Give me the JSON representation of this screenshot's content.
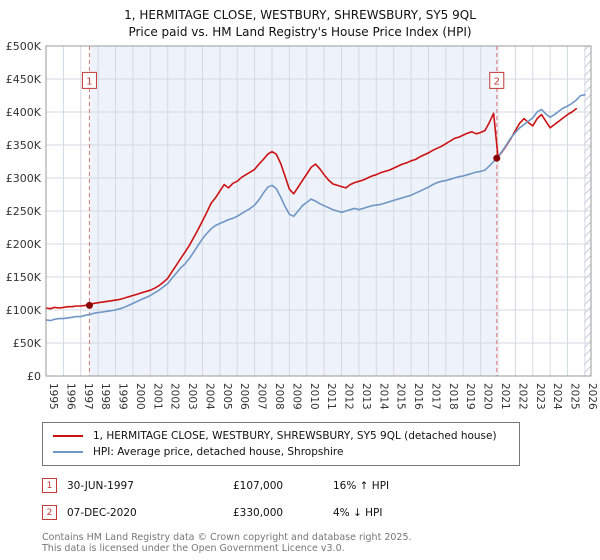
{
  "title": "1, HERMITAGE CLOSE, WESTBURY, SHREWSBURY, SY5 9QL",
  "subtitle": "Price paid vs. HM Land Registry's House Price Index (HPI)",
  "chart_data": {
    "type": "line",
    "title": "1, HERMITAGE CLOSE, WESTBURY, SHREWSBURY, SY5 9QL — Price paid vs. HPI",
    "unit": "GBP thousands",
    "ylim": [
      0,
      500
    ],
    "xlim": [
      1995,
      2026.35
    ],
    "grid": true,
    "shade_color": "#eef3fb",
    "shaded_region": [
      1997.5,
      2020.93
    ],
    "hatch_region": [
      2025.95,
      2026.35
    ],
    "y_ticks": [
      {
        "v": 0,
        "label": "£0"
      },
      {
        "v": 50,
        "label": "£50K"
      },
      {
        "v": 100,
        "label": "£100K"
      },
      {
        "v": 150,
        "label": "£150K"
      },
      {
        "v": 200,
        "label": "£200K"
      },
      {
        "v": 250,
        "label": "£250K"
      },
      {
        "v": 300,
        "label": "£300K"
      },
      {
        "v": 350,
        "label": "£350K"
      },
      {
        "v": 400,
        "label": "£400K"
      },
      {
        "v": 450,
        "label": "£450K"
      },
      {
        "v": 500,
        "label": "£500K"
      }
    ],
    "x_ticks": [
      1995,
      1996,
      1997,
      1998,
      1999,
      2000,
      2001,
      2002,
      2003,
      2004,
      2005,
      2006,
      2007,
      2008,
      2009,
      2010,
      2011,
      2012,
      2013,
      2014,
      2015,
      2016,
      2017,
      2018,
      2019,
      2020,
      2021,
      2022,
      2023,
      2024,
      2025,
      2026
    ],
    "series": [
      {
        "name": "1, HERMITAGE CLOSE, WESTBURY, SHREWSBURY, SY5 9QL (detached house)",
        "color": "#cc1111",
        "start": 1995,
        "step": 0.25,
        "values": [
          103,
          102,
          104,
          103,
          104,
          105,
          105,
          106,
          106,
          107,
          108,
          110,
          111,
          112,
          113,
          114,
          115,
          116,
          118,
          120,
          122,
          124,
          126,
          128,
          130,
          133,
          137,
          142,
          148,
          158,
          168,
          178,
          188,
          198,
          210,
          222,
          235,
          248,
          262,
          270,
          280,
          290,
          285,
          292,
          295,
          301,
          305,
          309,
          313,
          321,
          328,
          336,
          340,
          336,
          322,
          303,
          283,
          276,
          286,
          296,
          306,
          316,
          321,
          314,
          305,
          297,
          291,
          289,
          287,
          285,
          290,
          293,
          295,
          297,
          300,
          303,
          305,
          308,
          310,
          312,
          315,
          318,
          321,
          323,
          326,
          328,
          332,
          335,
          338,
          342,
          345,
          348,
          352,
          356,
          360,
          362,
          365,
          368,
          370,
          367,
          369,
          372,
          384,
          398,
          332,
          340,
          350,
          360,
          372,
          383,
          390,
          384,
          379,
          390,
          396,
          386,
          376,
          381,
          386,
          391,
          396,
          400,
          405
        ]
      },
      {
        "name": "HPI: Average price, detached house, Shropshire",
        "color": "#6f96c4",
        "start": 1995,
        "step": 0.25,
        "values": [
          85,
          84,
          86,
          87,
          87,
          88,
          89,
          90,
          90,
          92,
          93,
          95,
          96,
          97,
          98,
          99,
          100,
          102,
          104,
          107,
          110,
          113,
          116,
          119,
          122,
          126,
          130,
          135,
          140,
          148,
          156,
          164,
          170,
          178,
          188,
          198,
          208,
          216,
          223,
          228,
          231,
          234,
          237,
          239,
          242,
          246,
          250,
          254,
          259,
          267,
          277,
          286,
          289,
          284,
          271,
          257,
          245,
          242,
          250,
          258,
          263,
          268,
          265,
          261,
          258,
          255,
          252,
          250,
          248,
          250,
          252,
          254,
          252,
          254,
          256,
          258,
          259,
          260,
          262,
          264,
          266,
          268,
          270,
          272,
          274,
          277,
          280,
          283,
          286,
          290,
          293,
          295,
          296,
          298,
          300,
          302,
          303,
          305,
          307,
          309,
          310,
          312,
          318,
          325,
          332,
          341,
          351,
          361,
          369,
          376,
          381,
          386,
          391,
          400,
          404,
          397,
          392,
          396,
          401,
          406,
          409,
          413,
          418,
          425,
          426
        ]
      }
    ],
    "sales": [
      {
        "label": "1",
        "x": 1997.5,
        "y": 107
      },
      {
        "label": "2",
        "x": 2020.93,
        "y": 330
      }
    ]
  },
  "legend": {
    "items": [
      {
        "label": "1, HERMITAGE CLOSE, WESTBURY, SHREWSBURY, SY5 9QL (detached house)"
      },
      {
        "label": "HPI: Average price, detached house, Shropshire"
      }
    ]
  },
  "annotations": [
    {
      "num": "1",
      "date": "30-JUN-1997",
      "price": "£107,000",
      "hpi": "16% ↑ HPI"
    },
    {
      "num": "2",
      "date": "07-DEC-2020",
      "price": "£330,000",
      "hpi": "4% ↓ HPI"
    }
  ],
  "footer": {
    "line1": "Contains HM Land Registry data © Crown copyright and database right 2025.",
    "line2": "This data is licensed under the Open Government Licence v3.0."
  }
}
